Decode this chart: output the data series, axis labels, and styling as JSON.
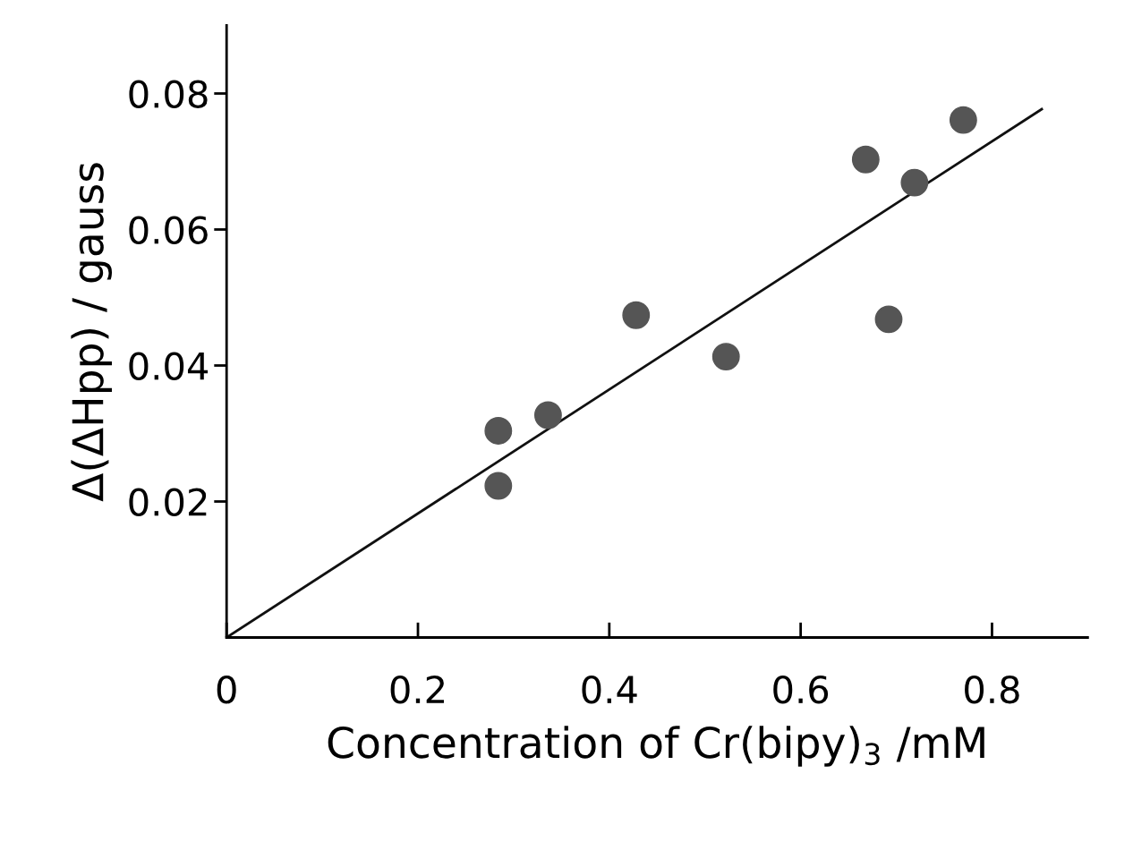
{
  "chart_data": {
    "type": "scatter",
    "xlabel": "Concentration of Cr(bipy)$_{3}$ /mM",
    "ylabel": "Δ(ΔHpp) / gauss",
    "xlim": [
      0,
      0.9
    ],
    "ylim": [
      0,
      0.09
    ],
    "xticks": [
      0,
      0.2,
      0.4,
      0.6,
      0.8
    ],
    "yticks": [
      0.02,
      0.04,
      0.06,
      0.08
    ],
    "grid": false,
    "legend": false,
    "series": [
      {
        "marker": "circle",
        "color": "#555555",
        "x": [
          0.284,
          0.284,
          0.336,
          0.428,
          0.522,
          0.668,
          0.692,
          0.719,
          0.77
        ],
        "values": [
          0.0223,
          0.0304,
          0.0327,
          0.0474,
          0.0413,
          0.0703,
          0.0468,
          0.0669,
          0.0761
        ]
      },
      {
        "type": "line",
        "color": "#111111",
        "line_style": "solid",
        "x": [
          0,
          0.852
        ],
        "values": [
          0,
          0.0777
        ]
      }
    ]
  }
}
